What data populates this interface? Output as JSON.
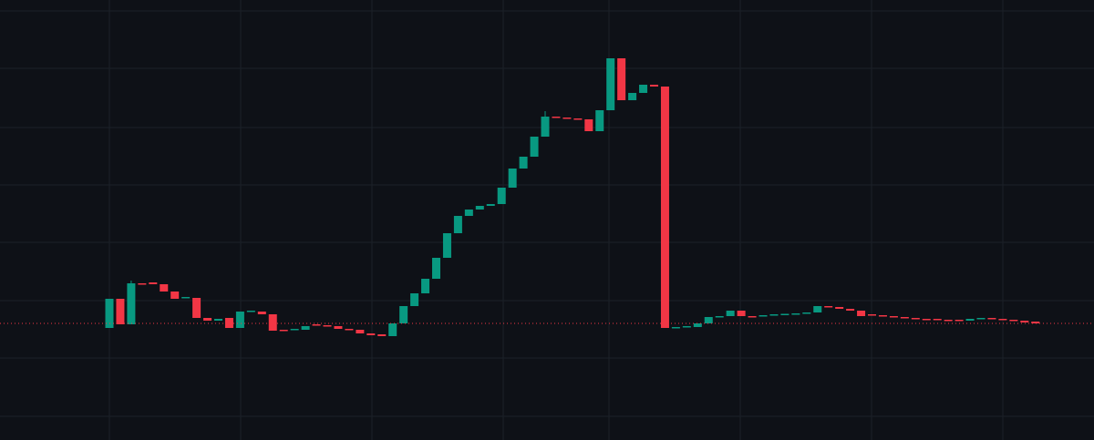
{
  "chart_data": {
    "type": "candlestick",
    "up_color": "#089981",
    "down_color": "#f23645",
    "grid": true,
    "ylim": [
      0,
      483
    ],
    "yticks": [
      26,
      90,
      153,
      217,
      280,
      343,
      408,
      471
    ],
    "last_price": 128,
    "open": [
      123,
      155,
      127,
      172,
      173,
      171,
      163,
      156,
      156,
      134,
      131,
      134,
      123,
      141,
      141,
      138,
      121,
      121,
      121,
      127,
      126,
      125,
      122,
      121,
      117,
      116,
      114,
      128,
      147,
      161,
      177,
      200,
      227,
      246,
      253,
      257,
      259,
      277,
      298,
      311,
      333,
      355,
      354,
      353,
      352,
      339,
      362,
      419,
      373,
      381,
      390,
      388,
      123,
      124,
      124,
      128,
      135,
      136,
      142,
      136,
      136,
      137,
      138,
      138,
      139,
      140,
      147,
      146,
      144,
      142,
      138,
      137,
      136,
      135,
      134,
      133,
      133,
      132,
      132,
      131,
      133,
      134,
      133,
      132,
      131,
      130
    ],
    "high": [
      155,
      155,
      175,
      172,
      173,
      171,
      163,
      157,
      156,
      134,
      133,
      134,
      141,
      142,
      141,
      138,
      121,
      122,
      125,
      127,
      126,
      125,
      122,
      121,
      117,
      116,
      128,
      147,
      161,
      177,
      200,
      227,
      246,
      253,
      257,
      259,
      277,
      298,
      311,
      333,
      361,
      355,
      354,
      353,
      352,
      362,
      419,
      419,
      381,
      390,
      390,
      388,
      124,
      125,
      128,
      135,
      136,
      142,
      142,
      136,
      137,
      138,
      138.5,
      139,
      140,
      147,
      147,
      146,
      144,
      142,
      138,
      137,
      136,
      135,
      134,
      133,
      133,
      132,
      132,
      133,
      134,
      134,
      133,
      132,
      131,
      130
    ],
    "low": [
      123,
      127,
      127,
      171,
      171,
      163,
      155,
      156,
      134,
      131,
      131,
      123,
      123,
      141,
      138,
      120,
      120,
      121,
      121,
      126,
      125,
      122,
      121,
      117,
      115,
      114,
      114,
      128,
      147,
      161,
      177,
      200,
      227,
      246,
      253,
      257,
      259,
      277,
      298,
      311,
      333,
      354,
      353,
      352,
      339,
      339,
      362,
      373,
      373,
      381,
      388,
      123,
      123,
      124,
      124,
      128,
      135,
      136,
      136,
      135,
      136,
      137,
      138,
      138,
      139,
      140,
      146,
      144,
      142,
      136,
      137,
      136,
      135,
      134,
      133,
      132.5,
      132,
      131,
      131,
      131,
      133,
      133,
      132,
      131,
      129,
      128
    ],
    "close": [
      155,
      127,
      172,
      171,
      171,
      163,
      155,
      157,
      134,
      131,
      133,
      123,
      141,
      142,
      138,
      120,
      120,
      122,
      125,
      126,
      125,
      122,
      121,
      117,
      115,
      114,
      128,
      147,
      161,
      177,
      200,
      227,
      246,
      253,
      257,
      259,
      277,
      298,
      311,
      333,
      355,
      354,
      353,
      352,
      339,
      362,
      419,
      373,
      381,
      390,
      388,
      123,
      124,
      125,
      128,
      135,
      136,
      142,
      136,
      135,
      137,
      138,
      138.5,
      139,
      140,
      147,
      146,
      144,
      142,
      136,
      137,
      136,
      135,
      134,
      133,
      132.5,
      132,
      131,
      131,
      133,
      134,
      133,
      132,
      131,
      129,
      128
    ]
  }
}
